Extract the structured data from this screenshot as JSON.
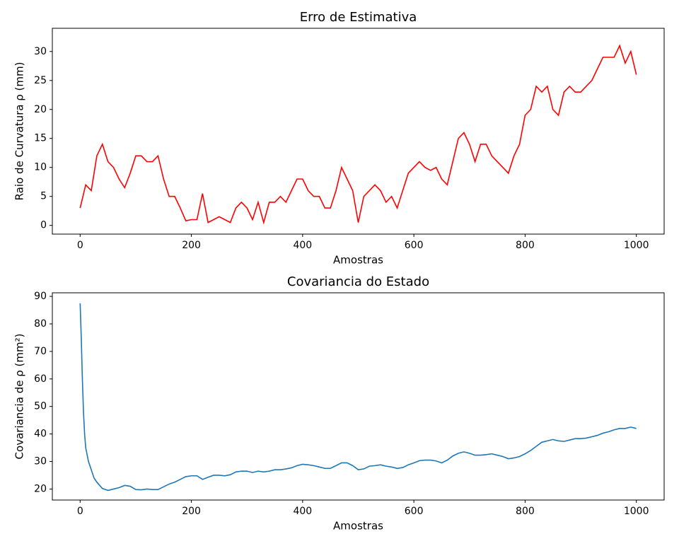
{
  "chart_data": [
    {
      "type": "line",
      "title": "Erro de Estimativa",
      "x_label": "Amostras",
      "y_label": "Raio de Curvatura ρ (mm)",
      "color": "#ff0000",
      "x": [
        0,
        10,
        20,
        30,
        40,
        50,
        60,
        70,
        80,
        90,
        100,
        110,
        120,
        130,
        140,
        150,
        160,
        170,
        180,
        190,
        200,
        210,
        220,
        230,
        240,
        250,
        260,
        270,
        280,
        290,
        300,
        310,
        320,
        330,
        340,
        350,
        360,
        370,
        380,
        390,
        400,
        410,
        420,
        430,
        440,
        450,
        460,
        470,
        480,
        490,
        500,
        510,
        520,
        530,
        540,
        550,
        560,
        570,
        580,
        590,
        600,
        610,
        620,
        630,
        640,
        650,
        660,
        670,
        680,
        690,
        700,
        710,
        720,
        730,
        740,
        750,
        760,
        770,
        780,
        790,
        800,
        810,
        820,
        830,
        840,
        850,
        860,
        870,
        880,
        890,
        900,
        910,
        920,
        930,
        940,
        950,
        960,
        970,
        980,
        990,
        1000
      ],
      "values": [
        3,
        7,
        6,
        12,
        14,
        11,
        10,
        8,
        6.5,
        9,
        12,
        12,
        11,
        11,
        12,
        8,
        5,
        5,
        3,
        0.8,
        1,
        1,
        5.5,
        0.5,
        1,
        1.5,
        1,
        0.5,
        3,
        4,
        3,
        1,
        4,
        0.5,
        4,
        4,
        5,
        4,
        6,
        8,
        8,
        6,
        5,
        5,
        3,
        3,
        6,
        10,
        8,
        6,
        0.5,
        5,
        6,
        7,
        6,
        4,
        5,
        3,
        6,
        9,
        10,
        11,
        10,
        9.5,
        10,
        8,
        7,
        11,
        15,
        16,
        14,
        11,
        14,
        14,
        12,
        11,
        10,
        9,
        12,
        14,
        19,
        20,
        24,
        23,
        24,
        20,
        19,
        23,
        24,
        23,
        23,
        24,
        25,
        27,
        29,
        29,
        29,
        31,
        28,
        30,
        26
      ],
      "xlim": [
        -50,
        1050
      ],
      "ylim": [
        -1.5,
        34
      ],
      "xticks": [
        0,
        200,
        400,
        600,
        800,
        1000
      ],
      "yticks": [
        0,
        5,
        10,
        15,
        20,
        25,
        30
      ]
    },
    {
      "type": "line",
      "title": "Covariancia do Estado",
      "x_label": "Amostras",
      "y_label": "Covariancia de ρ (mm²)",
      "color": "#1f77b4",
      "x": [
        0,
        2,
        4,
        6,
        8,
        10,
        15,
        20,
        25,
        30,
        40,
        50,
        60,
        70,
        80,
        90,
        100,
        110,
        120,
        130,
        140,
        150,
        160,
        170,
        180,
        190,
        200,
        210,
        220,
        230,
        240,
        250,
        260,
        270,
        280,
        290,
        300,
        310,
        320,
        330,
        340,
        350,
        360,
        370,
        380,
        390,
        400,
        410,
        420,
        430,
        440,
        450,
        460,
        470,
        480,
        490,
        500,
        510,
        520,
        530,
        540,
        550,
        560,
        570,
        580,
        590,
        600,
        610,
        620,
        630,
        640,
        650,
        660,
        670,
        680,
        690,
        700,
        710,
        720,
        730,
        740,
        750,
        760,
        770,
        780,
        790,
        800,
        810,
        820,
        830,
        840,
        850,
        860,
        870,
        880,
        890,
        900,
        910,
        920,
        930,
        940,
        950,
        960,
        970,
        980,
        990,
        1000
      ],
      "values": [
        87.5,
        75,
        60,
        48,
        40,
        35,
        30,
        27,
        24,
        22.5,
        20.2,
        19.5,
        20,
        20.5,
        21.3,
        21,
        19.8,
        19.7,
        20,
        19.8,
        19.8,
        20.8,
        21.8,
        22.5,
        23.5,
        24.5,
        24.8,
        24.8,
        23.5,
        24.3,
        25,
        25,
        24.8,
        25.2,
        26.2,
        26.5,
        26.5,
        26,
        26.5,
        26.2,
        26.5,
        27,
        27,
        27.3,
        27.7,
        28.5,
        29,
        28.8,
        28.5,
        28,
        27.5,
        27.5,
        28.5,
        29.5,
        29.5,
        28.5,
        27,
        27.3,
        28.3,
        28.5,
        28.8,
        28.3,
        28,
        27.5,
        27.8,
        28.8,
        29.5,
        30.3,
        30.5,
        30.5,
        30.2,
        29.5,
        30.5,
        32,
        33,
        33.5,
        33,
        32.3,
        32.3,
        32.5,
        32.8,
        32.3,
        31.8,
        31,
        31.3,
        31.8,
        32.8,
        34,
        35.5,
        37,
        37.5,
        38,
        37.5,
        37.3,
        37.8,
        38.3,
        38.3,
        38.5,
        39,
        39.5,
        40.3,
        40.8,
        41.5,
        42,
        42,
        42.5,
        42
      ],
      "xlim": [
        -50,
        1050
      ],
      "ylim": [
        16,
        91.3
      ],
      "xticks": [
        0,
        200,
        400,
        600,
        800,
        1000
      ],
      "yticks": [
        20,
        30,
        40,
        50,
        60,
        70,
        80,
        90
      ]
    }
  ]
}
